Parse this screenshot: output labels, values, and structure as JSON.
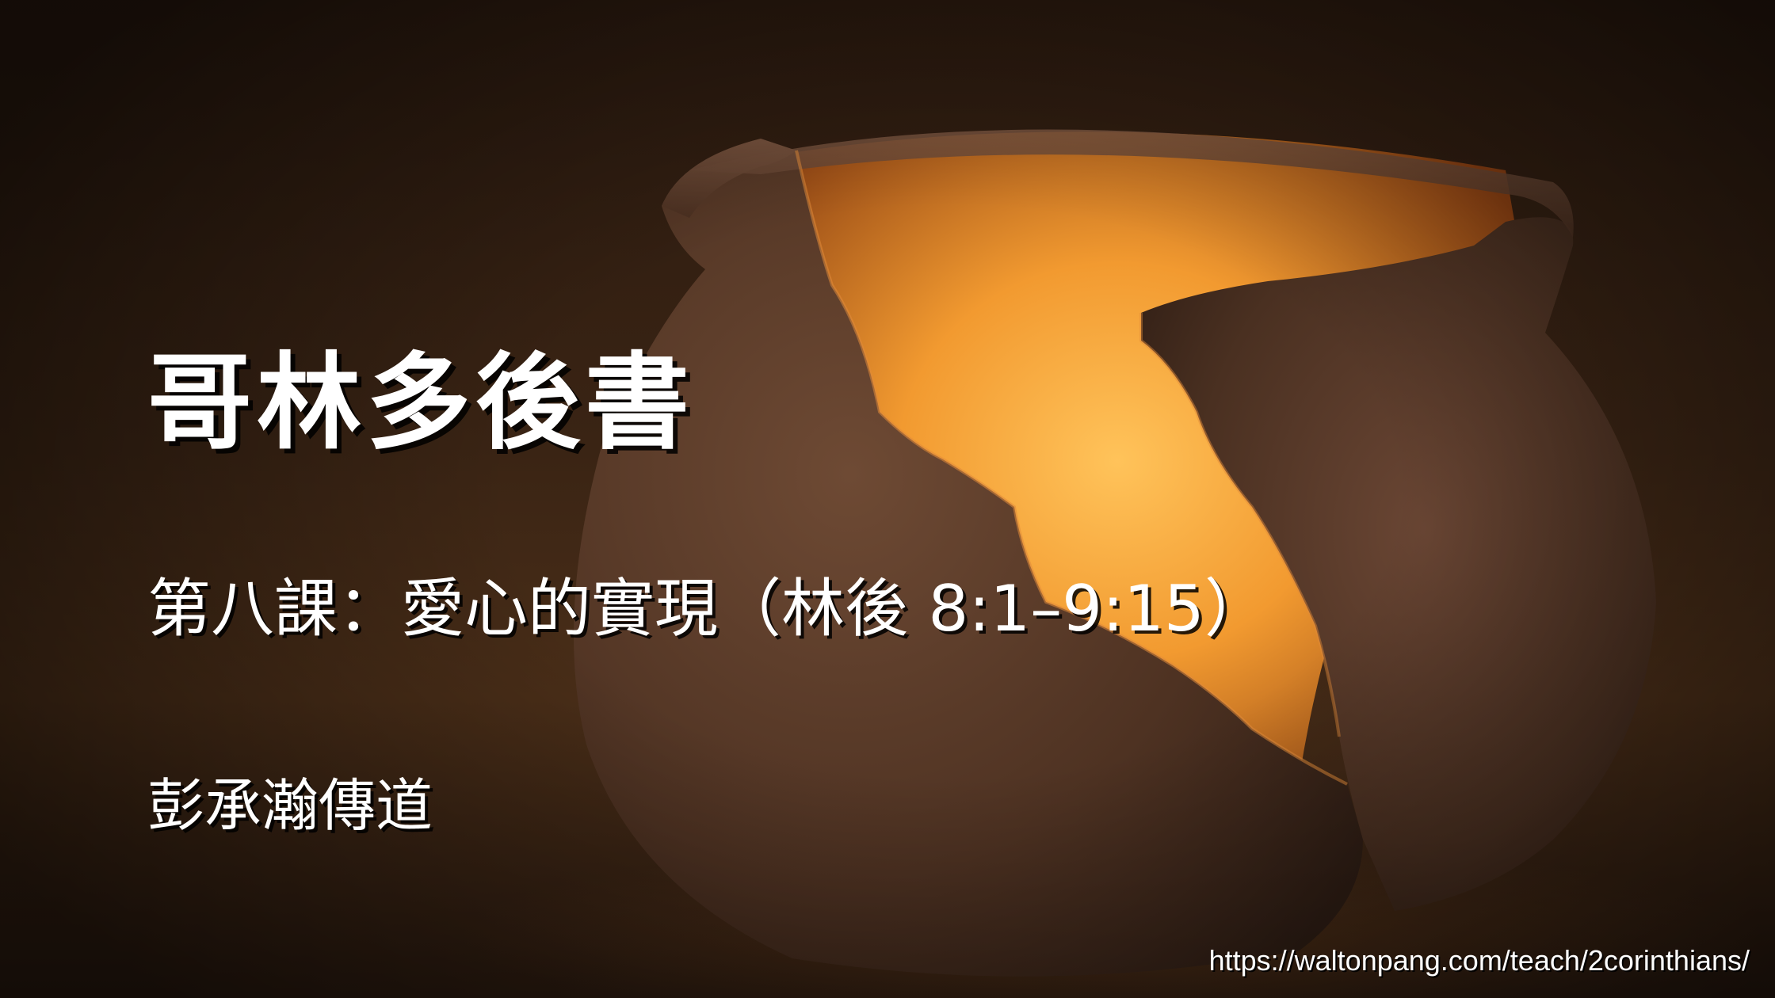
{
  "slide": {
    "title": "哥林多後書",
    "subtitle": "第八課：愛心的實現（林後 8:1–9:15）",
    "speaker": "彭承瀚傳道",
    "url": "https://waltonpang.com/teach/2corinthians/"
  },
  "colors": {
    "text": "#ffffff",
    "glow_core": "#ffb347",
    "glow_edge": "#c46a1c",
    "clay": "#5a3a26",
    "background": "#2b1a0f"
  },
  "image": {
    "subject": "broken clay pot icon"
  }
}
